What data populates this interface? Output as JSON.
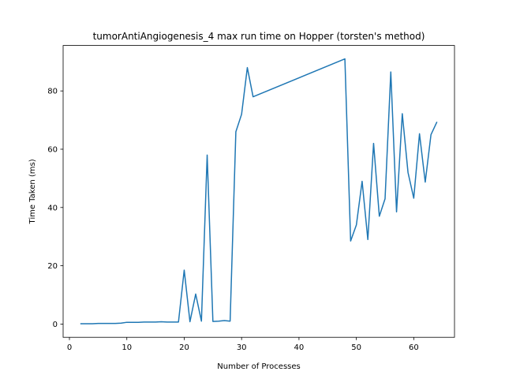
{
  "chart_data": {
    "type": "line",
    "title": "tumorAntiAngiogenesis_4 max run time on Hopper (torsten's method)",
    "xlabel": "Number of Processes",
    "ylabel": "Time Taken (ms)",
    "xlim": [
      -1.1,
      67.1
    ],
    "ylim": [
      -4.55,
      95.6
    ],
    "xticks": [
      0,
      10,
      20,
      30,
      40,
      50,
      60
    ],
    "yticks": [
      0,
      20,
      40,
      60,
      80
    ],
    "grid": false,
    "color": "#1f77b4",
    "series": [
      {
        "x": [
          2,
          3,
          4,
          5,
          6,
          7,
          8,
          9,
          10,
          11,
          12,
          13,
          14,
          15,
          16,
          17,
          18,
          19,
          20,
          21,
          22,
          23,
          24,
          25,
          26,
          27,
          28,
          29,
          30,
          31,
          32,
          48,
          49,
          50,
          51,
          52,
          53,
          54,
          55,
          56,
          57,
          58,
          59,
          60,
          61,
          62,
          63,
          64
        ],
        "y": [
          0.1,
          0.1,
          0.1,
          0.2,
          0.2,
          0.2,
          0.2,
          0.3,
          0.6,
          0.6,
          0.6,
          0.7,
          0.7,
          0.7,
          0.8,
          0.7,
          0.7,
          0.7,
          18.5,
          0.8,
          10.3,
          1.0,
          58.0,
          0.9,
          1.0,
          1.2,
          1.0,
          66.0,
          72.0,
          88.0,
          78.0,
          91.0,
          28.5,
          34.0,
          49.0,
          29.0,
          62.0,
          37.0,
          43.0,
          86.5,
          38.5,
          72.2,
          52.0,
          43.2,
          65.3,
          48.7,
          65.0,
          69.2
        ]
      }
    ]
  }
}
